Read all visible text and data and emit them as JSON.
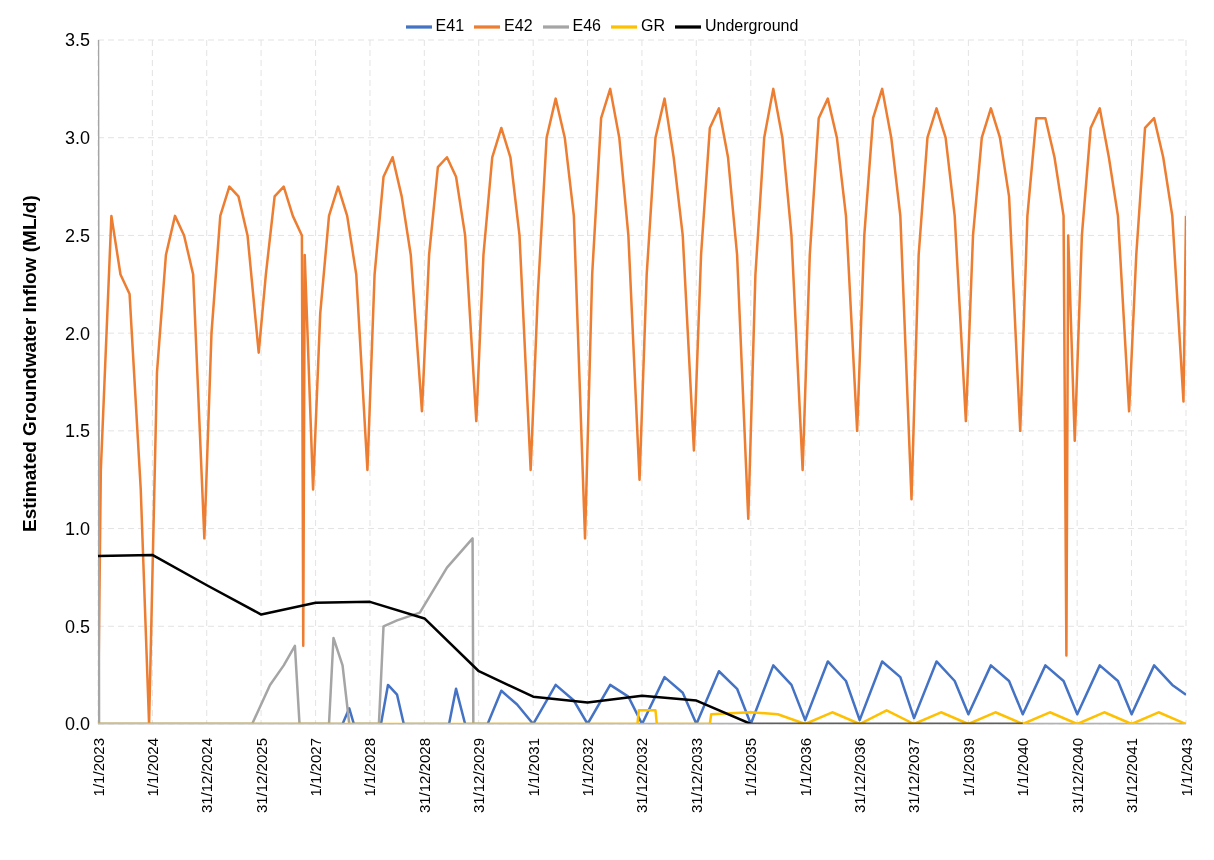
{
  "chart_data": {
    "type": "line",
    "ylabel": "Estimated Groundwater Inflow (ML/d)",
    "legend": "top",
    "grid": true,
    "line_style": "solid",
    "marker": "none",
    "xlim": [
      "2023-01-01",
      "2043-01-01"
    ],
    "xticks": [
      {
        "value": "2023-01-01",
        "label": "1/1/2023"
      },
      {
        "value": "2024-01-01",
        "label": "1/1/2024"
      },
      {
        "value": "2024-12-31",
        "label": "31/12/2024"
      },
      {
        "value": "2025-12-31",
        "label": "31/12/2025"
      },
      {
        "value": "2027-01-01",
        "label": "1/1/2027"
      },
      {
        "value": "2028-01-01",
        "label": "1/1/2028"
      },
      {
        "value": "2028-12-31",
        "label": "31/12/2028"
      },
      {
        "value": "2029-12-31",
        "label": "31/12/2029"
      },
      {
        "value": "2031-01-01",
        "label": "1/1/2031"
      },
      {
        "value": "2032-01-01",
        "label": "1/1/2032"
      },
      {
        "value": "2032-12-31",
        "label": "31/12/2032"
      },
      {
        "value": "2033-12-31",
        "label": "31/12/2033"
      },
      {
        "value": "2035-01-01",
        "label": "1/1/2035"
      },
      {
        "value": "2036-01-01",
        "label": "1/1/2036"
      },
      {
        "value": "2036-12-31",
        "label": "31/12/2036"
      },
      {
        "value": "2037-12-31",
        "label": "31/12/2037"
      },
      {
        "value": "2039-01-01",
        "label": "1/1/2039"
      },
      {
        "value": "2040-01-01",
        "label": "1/1/2040"
      },
      {
        "value": "2040-12-31",
        "label": "31/12/2040"
      },
      {
        "value": "2041-12-31",
        "label": "31/12/2041"
      },
      {
        "value": "2043-01-01",
        "label": "1/1/2043"
      }
    ],
    "ylim": [
      0,
      3.5
    ],
    "yticks": [
      {
        "value": 0,
        "label": "0.0"
      },
      {
        "value": 0.5,
        "label": "0.5"
      },
      {
        "value": 1,
        "label": "1.0"
      },
      {
        "value": 1.5,
        "label": "1.5"
      },
      {
        "value": 2,
        "label": "2.0"
      },
      {
        "value": 2.5,
        "label": "2.5"
      },
      {
        "value": 3,
        "label": "3.0"
      },
      {
        "value": 3.5,
        "label": "3.5"
      }
    ],
    "series": [
      {
        "name": "E41",
        "color": "#4472c4",
        "x": [
          "2023-01-01",
          "2027-07-01",
          "2027-08-15",
          "2027-09-15",
          "2028-03-15",
          "2028-05-01",
          "2028-07-01",
          "2028-08-15",
          "2029-06-15",
          "2029-08-01",
          "2029-10-01",
          "2030-03-01",
          "2030-06-01",
          "2030-09-15",
          "2031-01-01",
          "2031-06-01",
          "2031-10-01",
          "2032-01-01",
          "2032-06-01",
          "2032-10-01",
          "2033-01-01",
          "2033-06-01",
          "2033-10-01",
          "2034-01-01",
          "2034-06-01",
          "2034-10-01",
          "2035-01-01",
          "2035-06-01",
          "2035-10-01",
          "2036-01-01",
          "2036-06-01",
          "2036-10-01",
          "2037-01-01",
          "2037-06-01",
          "2037-10-01",
          "2038-01-01",
          "2038-06-01",
          "2038-10-01",
          "2039-01-01",
          "2039-06-01",
          "2039-10-01",
          "2040-01-01",
          "2040-06-01",
          "2040-10-01",
          "2041-01-01",
          "2041-06-01",
          "2041-10-01",
          "2042-01-01",
          "2042-06-01",
          "2042-10-01",
          "2043-01-01"
        ],
        "values": [
          0,
          0,
          0.08,
          0,
          0,
          0.2,
          0.15,
          0,
          0,
          0.18,
          0,
          0,
          0.17,
          0.1,
          0,
          0.2,
          0.12,
          0,
          0.2,
          0.14,
          0,
          0.24,
          0.16,
          0,
          0.27,
          0.18,
          0,
          0.3,
          0.2,
          0.02,
          0.32,
          0.22,
          0.02,
          0.32,
          0.24,
          0.03,
          0.32,
          0.22,
          0.05,
          0.3,
          0.22,
          0.05,
          0.3,
          0.22,
          0.05,
          0.3,
          0.22,
          0.05,
          0.3,
          0.2,
          0.15
        ]
      },
      {
        "name": "E42",
        "color": "#ed7d31",
        "x": [
          "2023-01-01",
          "2023-01-20",
          "2023-04-01",
          "2023-06-01",
          "2023-08-01",
          "2023-10-15",
          "2023-12-10",
          "2024-02-01",
          "2024-04-01",
          "2024-06-01",
          "2024-08-01",
          "2024-10-01",
          "2024-12-15",
          "2025-02-01",
          "2025-04-01",
          "2025-06-01",
          "2025-08-01",
          "2025-10-01",
          "2025-12-15",
          "2026-02-01",
          "2026-04-01",
          "2026-06-01",
          "2026-08-01",
          "2026-10-01",
          "2026-10-10",
          "2026-10-20",
          "2026-12-15",
          "2027-02-01",
          "2027-04-01",
          "2027-06-01",
          "2027-08-01",
          "2027-10-01",
          "2027-12-15",
          "2028-02-01",
          "2028-04-01",
          "2028-06-01",
          "2028-08-01",
          "2028-10-01",
          "2028-12-15",
          "2029-02-01",
          "2029-04-01",
          "2029-06-01",
          "2029-08-01",
          "2029-10-01",
          "2029-12-15",
          "2030-02-01",
          "2030-04-01",
          "2030-06-01",
          "2030-08-01",
          "2030-10-01",
          "2030-12-15",
          "2031-02-01",
          "2031-04-01",
          "2031-06-01",
          "2031-08-01",
          "2031-10-01",
          "2031-12-15",
          "2032-02-01",
          "2032-04-01",
          "2032-06-01",
          "2032-08-01",
          "2032-10-01",
          "2032-12-15",
          "2033-02-01",
          "2033-04-01",
          "2033-06-01",
          "2033-08-01",
          "2033-10-01",
          "2033-12-15",
          "2034-02-01",
          "2034-04-01",
          "2034-06-01",
          "2034-08-01",
          "2034-10-01",
          "2034-12-15",
          "2035-02-01",
          "2035-04-01",
          "2035-06-01",
          "2035-08-01",
          "2035-10-01",
          "2035-12-15",
          "2036-02-01",
          "2036-04-01",
          "2036-06-01",
          "2036-08-01",
          "2036-10-01",
          "2036-12-15",
          "2037-02-01",
          "2037-04-01",
          "2037-06-01",
          "2037-08-01",
          "2037-10-01",
          "2037-12-15",
          "2038-02-01",
          "2038-04-01",
          "2038-06-01",
          "2038-08-01",
          "2038-10-01",
          "2038-12-15",
          "2039-02-01",
          "2039-04-01",
          "2039-06-01",
          "2039-08-01",
          "2039-10-01",
          "2039-12-15",
          "2040-02-01",
          "2040-04-01",
          "2040-06-01",
          "2040-08-01",
          "2040-10-01",
          "2040-10-20",
          "2040-11-01",
          "2040-12-15",
          "2041-02-01",
          "2041-04-01",
          "2041-06-01",
          "2041-08-01",
          "2041-10-01",
          "2041-12-15",
          "2042-02-01",
          "2042-04-01",
          "2042-06-01",
          "2042-08-01",
          "2042-10-01",
          "2042-12-15",
          "2043-01-01"
        ],
        "values": [
          0,
          1.3,
          2.6,
          2.3,
          2.2,
          1.2,
          0,
          1.8,
          2.4,
          2.6,
          2.5,
          2.3,
          0.95,
          2,
          2.6,
          2.75,
          2.7,
          2.5,
          1.9,
          2.3,
          2.7,
          2.75,
          2.6,
          2.5,
          0.4,
          2.4,
          1.2,
          2.1,
          2.6,
          2.75,
          2.6,
          2.3,
          1.3,
          2.3,
          2.8,
          2.9,
          2.7,
          2.4,
          1.6,
          2.4,
          2.85,
          2.9,
          2.8,
          2.5,
          1.55,
          2.4,
          2.9,
          3.05,
          2.9,
          2.5,
          1.3,
          2.2,
          3,
          3.2,
          3,
          2.6,
          0.95,
          2.3,
          3.1,
          3.25,
          3,
          2.5,
          1.25,
          2.3,
          3,
          3.2,
          2.9,
          2.5,
          1.4,
          2.4,
          3.05,
          3.15,
          2.9,
          2.4,
          1.05,
          2.3,
          3,
          3.25,
          3,
          2.5,
          1.3,
          2.4,
          3.1,
          3.2,
          3,
          2.6,
          1.5,
          2.5,
          3.1,
          3.25,
          3,
          2.6,
          1.15,
          2.4,
          3,
          3.15,
          3,
          2.6,
          1.55,
          2.5,
          3,
          3.15,
          3,
          2.7,
          1.5,
          2.6,
          3.1,
          3.1,
          2.9,
          2.6,
          0.35,
          2.5,
          1.45,
          2.5,
          3.05,
          3.15,
          2.9,
          2.6,
          1.6,
          2.4,
          3.05,
          3.1,
          2.9,
          2.6,
          1.65,
          2.6
        ]
      },
      {
        "name": "E46",
        "color": "#a5a5a5",
        "x": [
          "2023-01-01",
          "2023-01-08",
          "2025-11-01",
          "2026-03-01",
          "2026-06-01",
          "2026-08-15",
          "2026-09-15",
          "2027-04-01",
          "2027-05-01",
          "2027-07-01",
          "2027-08-15",
          "2028-03-01",
          "2028-04-01",
          "2028-07-01",
          "2028-12-01",
          "2029-06-01",
          "2029-11-20",
          "2029-11-25",
          "2043-01-01"
        ],
        "values": [
          3.5,
          0,
          0,
          0.2,
          0.3,
          0.4,
          0,
          0,
          0.44,
          0.3,
          0,
          0,
          0.5,
          0.53,
          0.57,
          0.8,
          0.95,
          0,
          0
        ]
      },
      {
        "name": "GR",
        "color": "#ffc000",
        "x": [
          "2023-01-01",
          "2032-12-01",
          "2032-12-10",
          "2033-04-01",
          "2033-04-10",
          "2034-04-01",
          "2034-04-10",
          "2035-01-01",
          "2035-07-01",
          "2036-01-01",
          "2036-07-01",
          "2037-01-01",
          "2037-07-01",
          "2038-01-01",
          "2038-07-01",
          "2039-01-01",
          "2039-07-01",
          "2040-01-01",
          "2040-07-01",
          "2041-01-01",
          "2041-07-01",
          "2042-01-01",
          "2042-07-01",
          "2043-01-01"
        ],
        "values": [
          0,
          0,
          0.07,
          0.07,
          0,
          0,
          0.05,
          0.06,
          0.05,
          0,
          0.06,
          0,
          0.07,
          0,
          0.06,
          0,
          0.06,
          0,
          0.06,
          0,
          0.06,
          0,
          0.06,
          0
        ]
      },
      {
        "name": "Underground",
        "color": "#000000",
        "x": [
          "2023-01-01",
          "2024-01-01",
          "2025-01-01",
          "2026-01-01",
          "2027-01-01",
          "2028-01-01",
          "2029-01-01",
          "2030-01-01",
          "2031-01-01",
          "2032-01-01",
          "2033-01-01",
          "2034-01-01",
          "2035-01-01",
          "2036-01-01",
          "2037-01-01",
          "2038-01-01",
          "2039-01-01",
          "2040-01-01"
        ],
        "values": [
          0.86,
          0.865,
          0.71,
          0.56,
          0.62,
          0.625,
          0.54,
          0.27,
          0.14,
          0.11,
          0.145,
          0.12,
          0,
          0,
          0,
          0,
          0,
          0
        ]
      }
    ]
  }
}
